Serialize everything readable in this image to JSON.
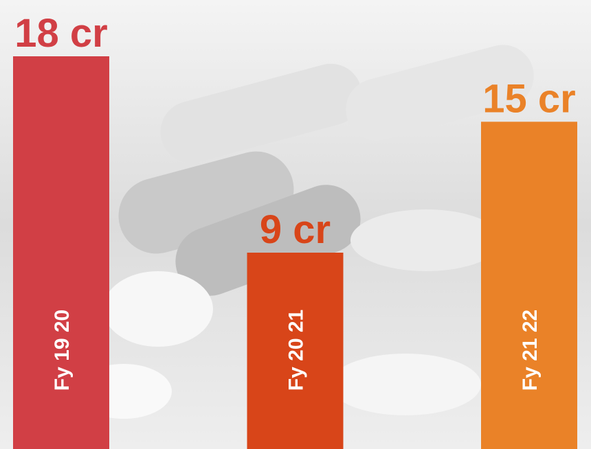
{
  "chart_data": {
    "type": "bar",
    "categories": [
      "Fy 19 20",
      "Fy 20 21",
      "Fy 21 22"
    ],
    "values": [
      18,
      9,
      15
    ],
    "value_labels": [
      "18 cr",
      "9 cr",
      "15 cr"
    ],
    "colors": [
      "#d13f45",
      "#d84519",
      "#ea8228"
    ]
  }
}
